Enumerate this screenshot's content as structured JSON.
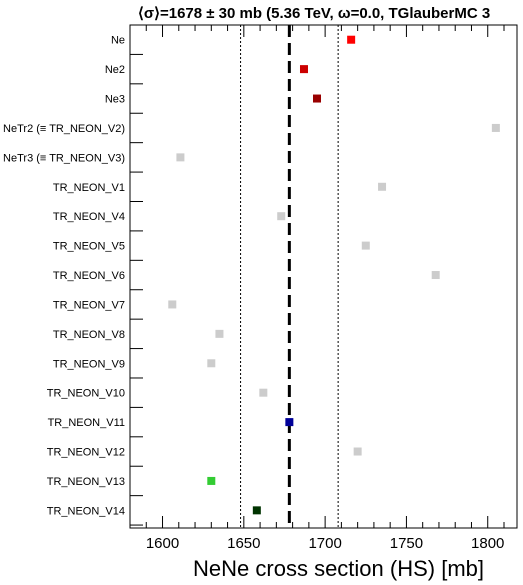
{
  "chart_data": {
    "type": "scatter",
    "title": "⟨σ⟩=1678 ± 30 mb (5.36 TeV, ω=0.0, TGlauberMC 3",
    "xlabel": "NeNe cross section (HS) [mb]",
    "ylabel": "",
    "xlim": [
      1580,
      1818
    ],
    "xticks": [
      1600,
      1650,
      1700,
      1750,
      1800
    ],
    "mean": 1678,
    "uncertainty": 30,
    "grid": false,
    "points": [
      {
        "label": "Ne",
        "x": 1716,
        "color": "#ff0000"
      },
      {
        "label": "Ne2",
        "x": 1687,
        "color": "#cc0000"
      },
      {
        "label": "Ne3",
        "x": 1695,
        "color": "#990000"
      },
      {
        "label": "NeTr2 (≡ TR_NEON_V2)",
        "x": 1805,
        "color": "#cccccc"
      },
      {
        "label": "NeTr3 (≡ TR_NEON_V3)",
        "x": 1611,
        "color": "#cccccc"
      },
      {
        "label": "TR_NEON_V1",
        "x": 1735,
        "color": "#cccccc"
      },
      {
        "label": "TR_NEON_V4",
        "x": 1673,
        "color": "#cccccc"
      },
      {
        "label": "TR_NEON_V5",
        "x": 1725,
        "color": "#cccccc"
      },
      {
        "label": "TR_NEON_V6",
        "x": 1768,
        "color": "#cccccc"
      },
      {
        "label": "TR_NEON_V7",
        "x": 1606,
        "color": "#cccccc"
      },
      {
        "label": "TR_NEON_V8",
        "x": 1635,
        "color": "#cccccc"
      },
      {
        "label": "TR_NEON_V9",
        "x": 1630,
        "color": "#cccccc"
      },
      {
        "label": "TR_NEON_V10",
        "x": 1662,
        "color": "#cccccc"
      },
      {
        "label": "TR_NEON_V11",
        "x": 1678,
        "color": "#000099"
      },
      {
        "label": "TR_NEON_V12",
        "x": 1720,
        "color": "#cccccc"
      },
      {
        "label": "TR_NEON_V13",
        "x": 1630,
        "color": "#33cc33"
      },
      {
        "label": "TR_NEON_V14",
        "x": 1658,
        "color": "#003300"
      }
    ]
  }
}
